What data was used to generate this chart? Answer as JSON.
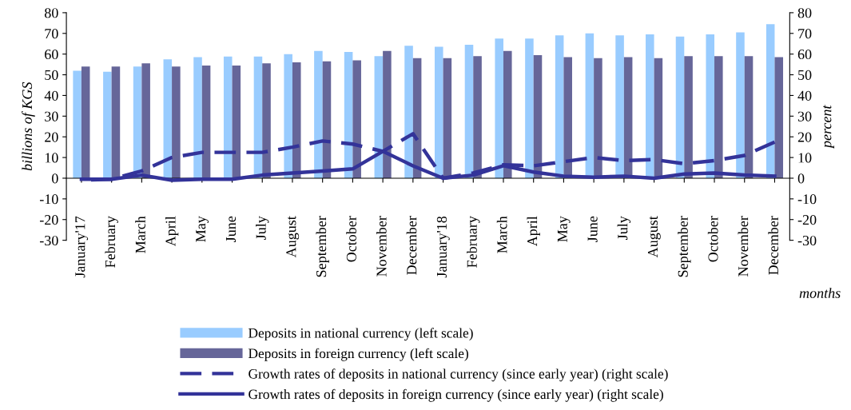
{
  "chart_data": {
    "type": "bar",
    "xlabel": "months",
    "ylabel": "billions of KGS",
    "y2label": "percent",
    "categories": [
      "January'17",
      "February",
      "March",
      "April",
      "May",
      "June",
      "July",
      "August",
      "September",
      "October",
      "November",
      "December",
      "January'18",
      "February",
      "March",
      "April",
      "May",
      "June",
      "July",
      "August",
      "September",
      "October",
      "November",
      "December"
    ],
    "series": [
      {
        "name": "Deposits in national currency (left scale)",
        "color": "#99ccff",
        "values": [
          52,
          51.5,
          54,
          57.5,
          58.5,
          58.8,
          58.8,
          60,
          61.5,
          61,
          59,
          64,
          63.5,
          64.5,
          67.5,
          67.5,
          69,
          70,
          69,
          69.5,
          68.5,
          69.5,
          70.5,
          74.5
        ]
      },
      {
        "name": "Deposits in foreign currency (left scale)",
        "color": "#666699",
        "values": [
          54,
          54,
          55.5,
          54,
          54.5,
          54.5,
          55.5,
          56,
          56.5,
          57,
          61.5,
          58,
          58,
          59,
          61.5,
          59.5,
          58.5,
          58,
          58.5,
          58,
          59,
          59,
          59,
          58.5
        ]
      },
      {
        "name": "Growth rates of deposits in national currency (since early year) (right scale)",
        "type": "line",
        "axis": "y2",
        "line_style": "dashed",
        "color": "#333399",
        "values": [
          -1,
          -0.5,
          3.5,
          10,
          12.5,
          12.5,
          12.5,
          15,
          18,
          16.5,
          13,
          21.5,
          0,
          2.5,
          6.5,
          6,
          8,
          10,
          8.5,
          9,
          7,
          8.5,
          11,
          17.5
        ]
      },
      {
        "name": "Growth rates of deposits in foreign currency (since early year) (right scale)",
        "type": "line",
        "axis": "y2",
        "line_style": "solid",
        "color": "#333399",
        "values": [
          -0.5,
          -0.5,
          1.5,
          -1,
          -0.5,
          -0.5,
          1.5,
          2.5,
          3.5,
          4.5,
          13,
          6,
          0,
          1.5,
          6,
          3,
          1,
          0.5,
          1,
          0,
          2,
          2.5,
          1.5,
          1
        ]
      }
    ],
    "ylim": [
      -30,
      80
    ],
    "yticks": [
      -30,
      -20,
      -10,
      0,
      10,
      20,
      30,
      40,
      50,
      60,
      70,
      80
    ],
    "y2lim": [
      -30,
      80
    ],
    "y2ticks": [
      -30,
      -20,
      -10,
      0,
      10,
      20,
      30,
      40,
      50,
      60,
      70,
      80
    ],
    "legend": "bottom",
    "marker": "none"
  }
}
